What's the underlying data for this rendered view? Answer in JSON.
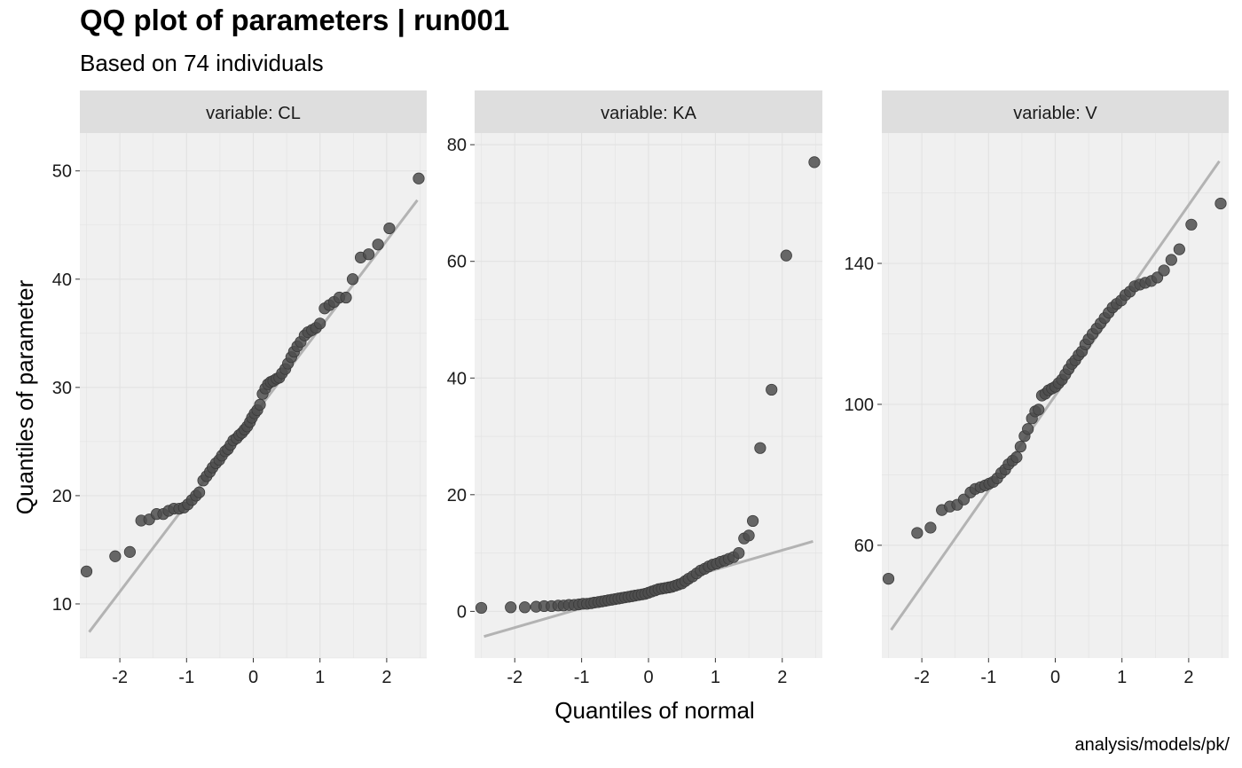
{
  "title": "QQ plot of parameters | run001",
  "subtitle": "Based on 74 individuals",
  "caption": "analysis/models/pk/",
  "colors": {
    "panel_bg": "#F0F0F0",
    "strip_bg": "#DEDEDE",
    "grid": "#E2E2E2",
    "point": "#4D4D4D",
    "ref_line": "#B3B3B3"
  },
  "chart_data": {
    "type": "scatter",
    "xlabel": "Quantiles of normal",
    "ylabel": "Quantiles of parameter",
    "xlim": [
      -2.6,
      2.6
    ],
    "x_ticks": [
      -2,
      -1,
      0,
      1,
      2
    ],
    "grid": true,
    "panels": [
      {
        "strip": "variable: CL",
        "ylim": [
          5,
          53.5
        ],
        "y_ticks": [
          10,
          20,
          30,
          40,
          50
        ],
        "ref_line": [
          [
            -2.46,
            7.4
          ],
          [
            2.46,
            47.3
          ]
        ],
        "points": [
          [
            -2.5,
            13.0
          ],
          [
            -2.07,
            14.4
          ],
          [
            -1.85,
            14.8
          ],
          [
            -1.68,
            17.7
          ],
          [
            -1.56,
            17.8
          ],
          [
            -1.45,
            18.3
          ],
          [
            -1.35,
            18.3
          ],
          [
            -1.27,
            18.6
          ],
          [
            -1.19,
            18.8
          ],
          [
            -1.11,
            18.8
          ],
          [
            -1.04,
            18.9
          ],
          [
            -0.98,
            19.2
          ],
          [
            -0.92,
            19.6
          ],
          [
            -0.86,
            20.0
          ],
          [
            -0.81,
            20.3
          ],
          [
            -0.75,
            21.4
          ],
          [
            -0.7,
            21.8
          ],
          [
            -0.65,
            22.2
          ],
          [
            -0.61,
            22.6
          ],
          [
            -0.56,
            23.0
          ],
          [
            -0.51,
            23.3
          ],
          [
            -0.47,
            23.7
          ],
          [
            -0.42,
            24.1
          ],
          [
            -0.38,
            24.3
          ],
          [
            -0.34,
            24.7
          ],
          [
            -0.3,
            25.1
          ],
          [
            -0.25,
            25.3
          ],
          [
            -0.21,
            25.6
          ],
          [
            -0.17,
            25.8
          ],
          [
            -0.13,
            26.1
          ],
          [
            -0.09,
            26.4
          ],
          [
            -0.05,
            26.8
          ],
          [
            -0.02,
            27.2
          ],
          [
            0.02,
            27.6
          ],
          [
            0.06,
            27.9
          ],
          [
            0.1,
            28.4
          ],
          [
            0.14,
            29.4
          ],
          [
            0.18,
            29.9
          ],
          [
            0.22,
            30.3
          ],
          [
            0.26,
            30.5
          ],
          [
            0.3,
            30.6
          ],
          [
            0.35,
            30.8
          ],
          [
            0.39,
            30.9
          ],
          [
            0.43,
            31.3
          ],
          [
            0.48,
            31.7
          ],
          [
            0.52,
            32.2
          ],
          [
            0.57,
            32.8
          ],
          [
            0.61,
            33.3
          ],
          [
            0.66,
            33.8
          ],
          [
            0.71,
            34.2
          ],
          [
            0.77,
            34.8
          ],
          [
            0.82,
            35.1
          ],
          [
            0.88,
            35.3
          ],
          [
            0.94,
            35.5
          ],
          [
            1.0,
            35.9
          ],
          [
            1.07,
            37.3
          ],
          [
            1.14,
            37.6
          ],
          [
            1.21,
            37.9
          ],
          [
            1.29,
            38.3
          ],
          [
            1.39,
            38.3
          ],
          [
            1.49,
            40.0
          ],
          [
            1.61,
            42.0
          ],
          [
            1.73,
            42.3
          ],
          [
            1.87,
            43.2
          ],
          [
            2.04,
            44.7
          ],
          [
            2.48,
            49.3
          ]
        ]
      },
      {
        "strip": "variable: KA",
        "ylim": [
          -8,
          82
        ],
        "y_ticks": [
          0,
          20,
          40,
          60,
          80
        ],
        "ref_line": [
          [
            -2.46,
            -4.3
          ],
          [
            2.46,
            12.0
          ]
        ],
        "points": [
          [
            -2.5,
            0.6
          ],
          [
            -2.06,
            0.7
          ],
          [
            -1.85,
            0.7
          ],
          [
            -1.68,
            0.8
          ],
          [
            -1.56,
            0.9
          ],
          [
            -1.45,
            0.9
          ],
          [
            -1.35,
            1.0
          ],
          [
            -1.27,
            1.0
          ],
          [
            -1.19,
            1.1
          ],
          [
            -1.11,
            1.1
          ],
          [
            -1.04,
            1.2
          ],
          [
            -0.98,
            1.3
          ],
          [
            -0.92,
            1.3
          ],
          [
            -0.86,
            1.4
          ],
          [
            -0.81,
            1.5
          ],
          [
            -0.75,
            1.6
          ],
          [
            -0.7,
            1.7
          ],
          [
            -0.65,
            1.8
          ],
          [
            -0.6,
            1.9
          ],
          [
            -0.55,
            2.0
          ],
          [
            -0.5,
            2.1
          ],
          [
            -0.45,
            2.2
          ],
          [
            -0.4,
            2.3
          ],
          [
            -0.35,
            2.4
          ],
          [
            -0.3,
            2.5
          ],
          [
            -0.25,
            2.6
          ],
          [
            -0.2,
            2.7
          ],
          [
            -0.15,
            2.8
          ],
          [
            -0.1,
            2.9
          ],
          [
            -0.05,
            3.0
          ],
          [
            0.0,
            3.2
          ],
          [
            0.05,
            3.4
          ],
          [
            0.1,
            3.6
          ],
          [
            0.15,
            3.8
          ],
          [
            0.2,
            3.9
          ],
          [
            0.25,
            4.0
          ],
          [
            0.3,
            4.1
          ],
          [
            0.35,
            4.2
          ],
          [
            0.4,
            4.4
          ],
          [
            0.45,
            4.6
          ],
          [
            0.5,
            4.8
          ],
          [
            0.55,
            5.2
          ],
          [
            0.6,
            5.6
          ],
          [
            0.66,
            6.0
          ],
          [
            0.72,
            6.5
          ],
          [
            0.78,
            7.0
          ],
          [
            0.84,
            7.3
          ],
          [
            0.9,
            7.7
          ],
          [
            0.96,
            8.0
          ],
          [
            1.02,
            8.2
          ],
          [
            1.08,
            8.5
          ],
          [
            1.14,
            8.7
          ],
          [
            1.2,
            9.0
          ],
          [
            1.27,
            9.3
          ],
          [
            1.35,
            10.0
          ],
          [
            1.43,
            12.5
          ],
          [
            1.5,
            13.0
          ],
          [
            1.56,
            15.5
          ],
          [
            1.67,
            28.0
          ],
          [
            1.84,
            38.0
          ],
          [
            2.06,
            61.0
          ],
          [
            2.48,
            77.0
          ]
        ]
      },
      {
        "strip": "variable: V",
        "ylim": [
          28,
          177
        ],
        "y_ticks": [
          60,
          100,
          140
        ],
        "ref_line": [
          [
            -2.46,
            36.0
          ],
          [
            2.46,
            169.0
          ]
        ],
        "points": [
          [
            -2.5,
            50.5
          ],
          [
            -2.07,
            63.5
          ],
          [
            -1.87,
            65.0
          ],
          [
            -1.7,
            70.0
          ],
          [
            -1.58,
            71.0
          ],
          [
            -1.47,
            71.5
          ],
          [
            -1.37,
            73.0
          ],
          [
            -1.27,
            75.0
          ],
          [
            -1.2,
            76.0
          ],
          [
            -1.12,
            76.5
          ],
          [
            -1.05,
            77.0
          ],
          [
            -0.99,
            77.5
          ],
          [
            -0.93,
            78.0
          ],
          [
            -0.87,
            79.0
          ],
          [
            -0.81,
            80.5
          ],
          [
            -0.75,
            81.5
          ],
          [
            -0.7,
            83.0
          ],
          [
            -0.64,
            84.0
          ],
          [
            -0.58,
            85.0
          ],
          [
            -0.52,
            88.0
          ],
          [
            -0.46,
            91.0
          ],
          [
            -0.41,
            93.0
          ],
          [
            -0.35,
            96.0
          ],
          [
            -0.3,
            98.0
          ],
          [
            -0.25,
            98.5
          ],
          [
            -0.2,
            102.5
          ],
          [
            -0.15,
            103.0
          ],
          [
            -0.1,
            104.0
          ],
          [
            -0.05,
            104.5
          ],
          [
            0.0,
            105.0
          ],
          [
            0.05,
            106.0
          ],
          [
            0.1,
            107.0
          ],
          [
            0.15,
            108.5
          ],
          [
            0.2,
            110.0
          ],
          [
            0.25,
            111.5
          ],
          [
            0.3,
            112.5
          ],
          [
            0.35,
            114.0
          ],
          [
            0.4,
            115.0
          ],
          [
            0.45,
            117.0
          ],
          [
            0.5,
            118.5
          ],
          [
            0.56,
            120.0
          ],
          [
            0.62,
            121.5
          ],
          [
            0.68,
            123.0
          ],
          [
            0.74,
            124.5
          ],
          [
            0.8,
            126.0
          ],
          [
            0.86,
            127.5
          ],
          [
            0.92,
            128.5
          ],
          [
            0.99,
            129.5
          ],
          [
            1.05,
            131.0
          ],
          [
            1.12,
            132.0
          ],
          [
            1.19,
            133.5
          ],
          [
            1.27,
            134.0
          ],
          [
            1.35,
            134.5
          ],
          [
            1.44,
            135.0
          ],
          [
            1.53,
            136.0
          ],
          [
            1.63,
            138.0
          ],
          [
            1.74,
            141.0
          ],
          [
            1.86,
            144.0
          ],
          [
            2.04,
            151.0
          ],
          [
            2.48,
            157.0
          ]
        ]
      }
    ]
  }
}
